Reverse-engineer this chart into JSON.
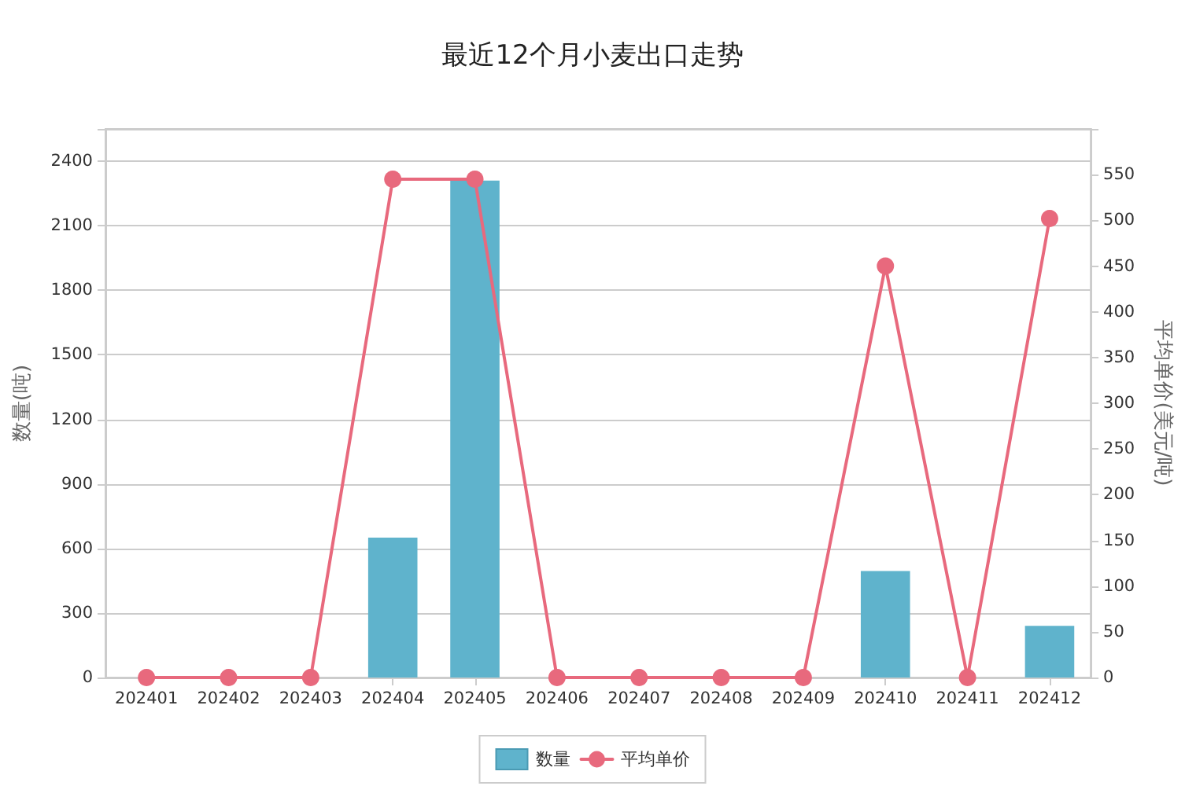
{
  "chart_data": {
    "type": "bar",
    "title": "最近12个月小麦出口走势",
    "ylabel": "数量(吨)",
    "y2label": "平均单价(美元/吨)",
    "categories": [
      "202401",
      "202402",
      "202403",
      "202404",
      "202405",
      "202406",
      "202407",
      "202408",
      "202409",
      "202410",
      "202411",
      "202412"
    ],
    "series": [
      {
        "name": "数量",
        "color": "#5fb3cc",
        "values": [
          0,
          0,
          0,
          650,
          2310,
          0,
          0,
          0,
          0,
          495,
          0,
          240
        ]
      },
      {
        "name": "平均单价",
        "type": "line",
        "axis": "y2",
        "color": "#e8697d",
        "values": [
          0,
          0,
          0,
          545,
          545,
          0,
          0,
          0,
          0,
          450,
          0,
          502
        ]
      }
    ],
    "ylim": [
      0,
      2550
    ],
    "yticks": [
      0,
      300,
      600,
      900,
      1200,
      1500,
      1800,
      2100,
      2400
    ],
    "y2lim": [
      0,
      600
    ],
    "y2ticks": [
      0,
      50,
      100,
      150,
      200,
      250,
      300,
      350,
      400,
      450,
      500,
      550
    ],
    "marker": "circle",
    "line_style": "solid",
    "grid": "y",
    "legend": "bottom"
  }
}
